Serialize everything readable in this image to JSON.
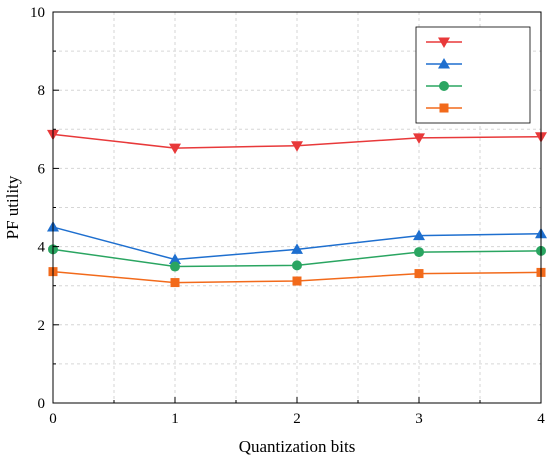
{
  "chart_data": {
    "type": "line",
    "title": "",
    "xlabel": "Quantization bits",
    "ylabel": "PF utility",
    "x": [
      0,
      1,
      2,
      3,
      4
    ],
    "xlim": [
      0,
      4
    ],
    "ylim": [
      0,
      10
    ],
    "xticks": [
      "0",
      "1",
      "2",
      "3",
      "4"
    ],
    "yticks": [
      "0",
      "2",
      "4",
      "6",
      "8",
      "10"
    ],
    "grid": true,
    "legend_position": "top-right",
    "series": [
      {
        "name": "",
        "color": "#e8393a",
        "marker": "triangle-down",
        "values": [
          6.87,
          6.52,
          6.58,
          6.78,
          6.81
        ]
      },
      {
        "name": "",
        "color": "#1e6fcf",
        "marker": "triangle-up",
        "values": [
          4.5,
          3.67,
          3.93,
          4.28,
          4.33
        ]
      },
      {
        "name": "",
        "color": "#2aa561",
        "marker": "circle",
        "values": [
          3.93,
          3.49,
          3.52,
          3.86,
          3.89
        ]
      },
      {
        "name": "",
        "color": "#f26a1b",
        "marker": "square",
        "values": [
          3.36,
          3.08,
          3.12,
          3.31,
          3.34
        ]
      }
    ]
  }
}
